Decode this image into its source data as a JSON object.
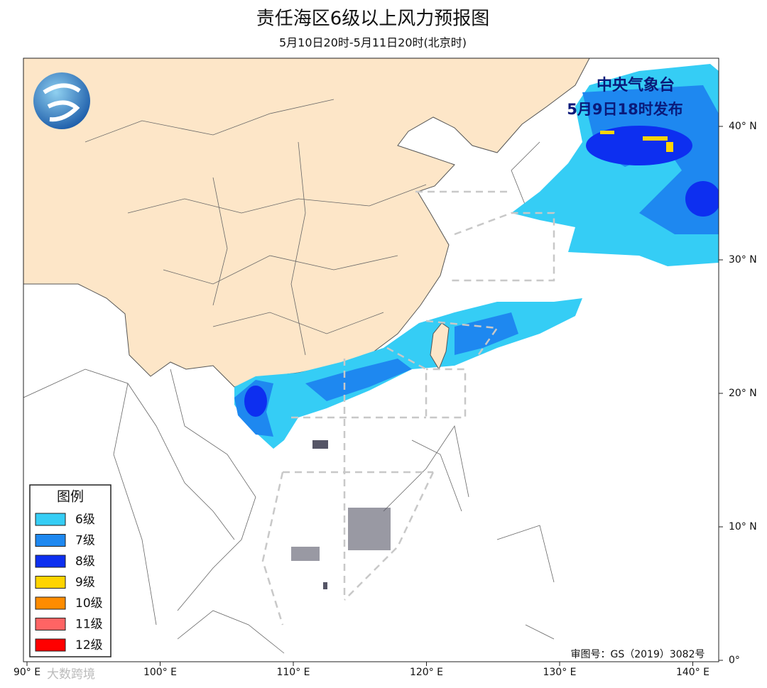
{
  "header": {
    "title": "责任海区6级以上风力预报图",
    "subtitle": "5月10日20时-5月11日20时(北京时)"
  },
  "issuer": {
    "agency": "中央气象台",
    "issued": "5月9日18时发布"
  },
  "legend": {
    "title": "图例",
    "items": [
      {
        "label": "6级",
        "color": "#35cdf5"
      },
      {
        "label": "7级",
        "color": "#1e88f0"
      },
      {
        "label": "8级",
        "color": "#0d2ff0"
      },
      {
        "label": "9级",
        "color": "#ffd400"
      },
      {
        "label": "10级",
        "color": "#ff8c00"
      },
      {
        "label": "11级",
        "color": "#ff6464"
      },
      {
        "label": "12级",
        "color": "#ff0000"
      }
    ]
  },
  "map": {
    "lat_ticks": [
      "40° N",
      "30° N",
      "20° N",
      "10° N",
      "0°"
    ],
    "lon_ticks": [
      "90° E",
      "100° E",
      "110° E",
      "120° E",
      "130° E",
      "140° E"
    ],
    "approval": "审图号：GS（2019）3082号"
  },
  "watermark": "大数跨境"
}
